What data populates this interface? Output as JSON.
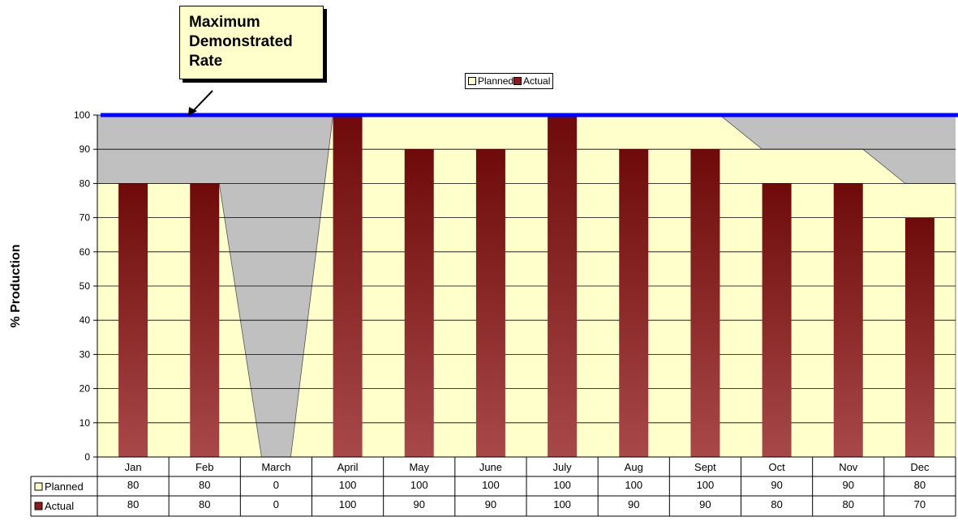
{
  "callout": {
    "lines": [
      "Maximum",
      "Demonstrated",
      "Rate"
    ]
  },
  "chart_data": {
    "type": "bar",
    "ylabel": "% Production",
    "ylim": [
      0,
      100
    ],
    "y_ticks": [
      0,
      10,
      20,
      30,
      40,
      50,
      60,
      70,
      80,
      90,
      100
    ],
    "grid": true,
    "legend_position": "top-center",
    "categories": [
      "Jan",
      "Feb",
      "March",
      "April",
      "May",
      "June",
      "July",
      "Aug",
      "Sept",
      "Oct",
      "Nov",
      "Dec"
    ],
    "max_rate": 100,
    "series": [
      {
        "name": "Planned",
        "type": "area",
        "color": "#ffffcc",
        "values": [
          80,
          80,
          0,
          100,
          100,
          100,
          100,
          100,
          100,
          90,
          90,
          80
        ]
      },
      {
        "name": "Actual",
        "type": "bar",
        "color": "#8b1a1a",
        "values": [
          80,
          80,
          0,
          100,
          90,
          90,
          100,
          90,
          90,
          80,
          80,
          70
        ]
      }
    ],
    "max_line_color": "#0000ff",
    "plot_background": "#c0c0c0"
  }
}
